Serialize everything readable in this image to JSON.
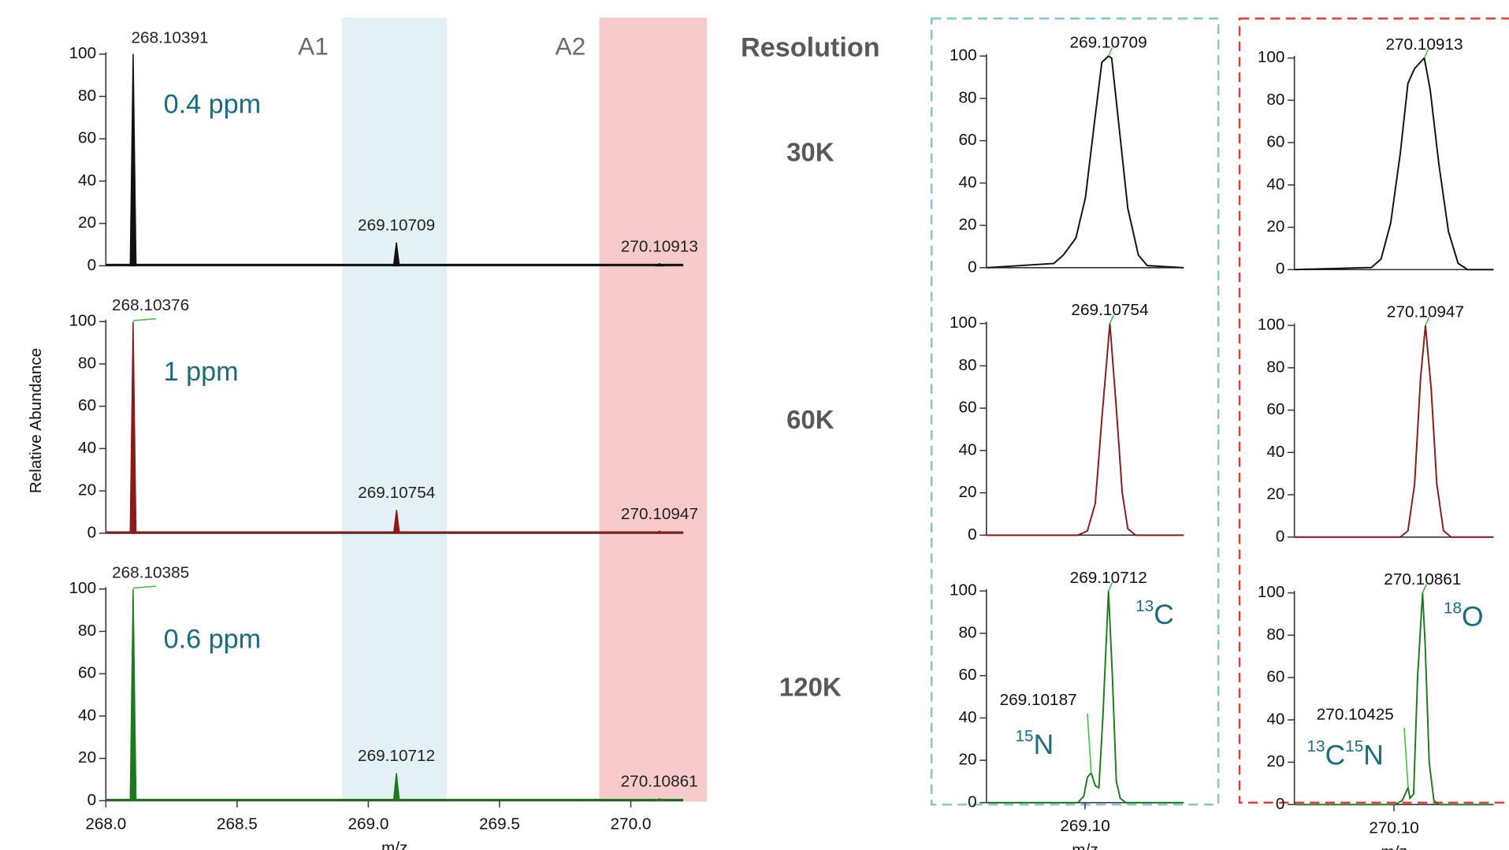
{
  "y_label": "Relative Abundance",
  "resolution_header": "Resolution",
  "chart_data": [
    {
      "type": "spectrum",
      "color": "#111111",
      "resolution": "30K",
      "accuracy": "0.4 ppm",
      "xlim": [
        268.0,
        270.2
      ],
      "ylim": [
        0,
        100
      ],
      "yticks": [
        0,
        20,
        40,
        60,
        80,
        100
      ],
      "regions": [
        {
          "label": "A1",
          "range": [
            268.9,
            269.3
          ],
          "color": "#e3f1f5"
        },
        {
          "label": "A2",
          "range": [
            269.88,
            270.29
          ],
          "color": "#f7cbcb"
        }
      ],
      "peaks": {
        "x": [
          268.10391,
          269.10709,
          270.10913
        ],
        "values": [
          100,
          11,
          1
        ]
      }
    },
    {
      "type": "spectrum",
      "color": "#8b1a1a",
      "resolution": "60K",
      "accuracy": "1 ppm",
      "xlim": [
        268.0,
        270.2
      ],
      "ylim": [
        0,
        100
      ],
      "yticks": [
        0,
        20,
        40,
        60,
        80,
        100
      ],
      "peaks": {
        "x": [
          268.10376,
          269.10754,
          270.10947
        ],
        "values": [
          100,
          11,
          1
        ]
      }
    },
    {
      "type": "spectrum",
      "color": "#1f7a1f",
      "resolution": "120K",
      "accuracy": "0.6 ppm",
      "xlim": [
        268.0,
        270.2
      ],
      "ylim": [
        0,
        100
      ],
      "yticks": [
        0,
        20,
        40,
        60,
        80,
        100
      ],
      "xticks": [
        {
          "value": 268.0,
          "label": "268.0"
        },
        {
          "value": 268.5,
          "label": "268.5"
        },
        {
          "value": 269.0,
          "label": "269.0"
        },
        {
          "value": 269.5,
          "label": "269.5"
        },
        {
          "value": 270.0,
          "label": "270.0"
        }
      ],
      "xlabel": "m/z",
      "peaks": {
        "x": [
          268.10385,
          269.10712,
          270.10861
        ],
        "values": [
          100,
          13,
          1
        ]
      }
    },
    {
      "type": "profile",
      "color": "#111111",
      "xlim": [
        269.07,
        269.13
      ],
      "ylim": [
        0,
        100
      ],
      "yticks": [
        0,
        20,
        40,
        60,
        80,
        100
      ],
      "profile": {
        "x": [
          269.07,
          269.0905,
          269.0934,
          269.0972,
          269.1001,
          269.1028,
          269.1051,
          269.1071,
          269.1081,
          269.1101,
          269.113,
          269.1162,
          269.1189,
          269.13
        ],
        "values": [
          0,
          2,
          6,
          14,
          33,
          68,
          97,
          100,
          99,
          70,
          28,
          6,
          1,
          0
        ]
      },
      "peaks": {
        "x": [
          269.10709
        ],
        "values": [
          100
        ]
      }
    },
    {
      "type": "profile",
      "color": "#8b1a1a",
      "xlim": [
        269.07,
        269.13
      ],
      "ylim": [
        0,
        100
      ],
      "yticks": [
        0,
        20,
        40,
        60,
        80,
        100
      ],
      "profile": {
        "x": [
          269.07,
          269.0978,
          269.1007,
          269.1031,
          269.1051,
          269.10754,
          269.1095,
          269.1113,
          269.113,
          269.1154,
          269.13
        ],
        "values": [
          0,
          0,
          2,
          15,
          55,
          100,
          60,
          20,
          3,
          0,
          0
        ]
      },
      "peaks": {
        "x": [
          269.10754
        ],
        "values": [
          100
        ]
      }
    },
    {
      "type": "profile",
      "color": "#1f7a1f",
      "xlim": [
        269.07,
        269.13
      ],
      "ylim": [
        0,
        100
      ],
      "yticks": [
        0,
        20,
        40,
        60,
        80,
        100
      ],
      "xticks": [
        {
          "value": 269.1,
          "label": "269.10"
        }
      ],
      "xlabel": "m/z",
      "profile": {
        "x": [
          269.07,
          269.0978,
          269.0996,
          269.1007,
          269.10187,
          269.1031,
          269.1042,
          269.1054,
          269.10712,
          269.1083,
          269.1095,
          269.1107,
          269.1124,
          269.13
        ],
        "values": [
          0,
          0,
          3,
          12,
          14,
          8,
          7,
          40,
          100,
          60,
          10,
          2,
          0,
          0
        ]
      },
      "peaks": {
        "x": [
          269.10187,
          269.10712
        ],
        "values": [
          14,
          100
        ]
      },
      "annotations": [
        {
          "parts": [
            {
              "sup": "13",
              "base": "C"
            }
          ]
        },
        {
          "parts": [
            {
              "sup": "15",
              "base": "N"
            }
          ]
        }
      ]
    },
    {
      "type": "profile",
      "color": "#111111",
      "xlim": [
        270.07,
        270.13
      ],
      "ylim": [
        0,
        100
      ],
      "yticks": [
        0,
        20,
        40,
        60,
        80,
        100
      ],
      "profile": {
        "x": [
          270.07,
          270.0932,
          270.0961,
          270.099,
          270.1019,
          270.1042,
          270.1062,
          270.10913,
          270.1109,
          270.1135,
          270.1164,
          270.1193,
          270.1222,
          270.13
        ],
        "values": [
          0,
          1,
          5,
          22,
          55,
          88,
          95,
          100,
          85,
          50,
          18,
          3,
          0,
          0
        ]
      },
      "peaks": {
        "x": [
          270.10913
        ],
        "values": [
          100
        ]
      }
    },
    {
      "type": "profile",
      "color": "#8b1a1a",
      "xlim": [
        270.07,
        270.13
      ],
      "ylim": [
        0,
        100
      ],
      "yticks": [
        0,
        20,
        40,
        60,
        80,
        100
      ],
      "profile": {
        "x": [
          270.07,
          270.1019,
          270.1042,
          270.1062,
          270.108,
          270.10947,
          270.1112,
          270.1129,
          270.1149,
          270.1172,
          270.13
        ],
        "values": [
          0,
          0,
          3,
          25,
          75,
          100,
          70,
          25,
          3,
          0,
          0
        ]
      },
      "peaks": {
        "x": [
          270.10947
        ],
        "values": [
          100
        ]
      }
    },
    {
      "type": "profile",
      "color": "#1f7a1f",
      "xlim": [
        270.07,
        270.13
      ],
      "ylim": [
        0,
        100
      ],
      "yticks": [
        0,
        20,
        40,
        60,
        80,
        100
      ],
      "xticks": [
        {
          "value": 270.1,
          "label": "270.10"
        }
      ],
      "xlabel": "m/z",
      "profile": {
        "x": [
          270.07,
          270.1004,
          270.1025,
          270.10425,
          270.1048,
          270.1059,
          270.1071,
          270.10861,
          270.1094,
          270.1106,
          270.112,
          270.1135,
          270.13
        ],
        "values": [
          0,
          0,
          2,
          8,
          3,
          5,
          60,
          100,
          75,
          20,
          2,
          0,
          0
        ]
      },
      "peaks": {
        "x": [
          270.10425,
          270.10861
        ],
        "values": [
          8,
          100
        ]
      },
      "annotations": [
        {
          "parts": [
            {
              "sup": "18",
              "base": "O"
            }
          ]
        },
        {
          "parts": [
            {
              "sup": "13",
              "base": "C"
            },
            {
              "sup": "15",
              "base": "N"
            }
          ]
        }
      ]
    }
  ]
}
